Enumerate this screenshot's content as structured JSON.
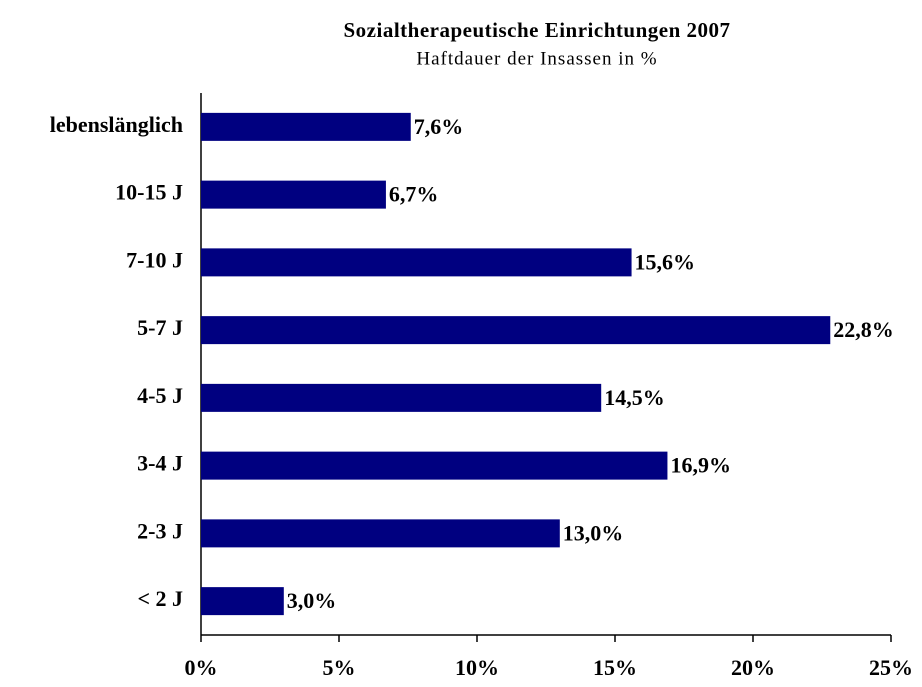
{
  "chart_data": {
    "type": "barh",
    "title": "Sozialtherapeutische Einrichtungen 2007",
    "subtitle": "Haftdauer der Insassen in %",
    "categories": [
      "lebenslänglich",
      "10-15 J",
      "7-10 J",
      "5-7 J",
      "4-5 J",
      "3-4 J",
      "2-3 J",
      "< 2 J"
    ],
    "values": [
      7.6,
      6.7,
      15.6,
      22.8,
      14.5,
      16.9,
      13.0,
      3.0
    ],
    "value_labels": [
      "7,6%",
      "6,7%",
      "15,6%",
      "22,8%",
      "14,5%",
      "16,9%",
      "13,0%",
      "3,0%"
    ],
    "color": "#000080",
    "xlim": [
      0,
      25
    ],
    "xticks": [
      {
        "value": 0,
        "label": "0%"
      },
      {
        "value": 5,
        "label": "5%"
      },
      {
        "value": 10,
        "label": "10%"
      },
      {
        "value": 15,
        "label": "15%"
      },
      {
        "value": 20,
        "label": "20%"
      },
      {
        "value": 25,
        "label": "25%"
      }
    ]
  }
}
